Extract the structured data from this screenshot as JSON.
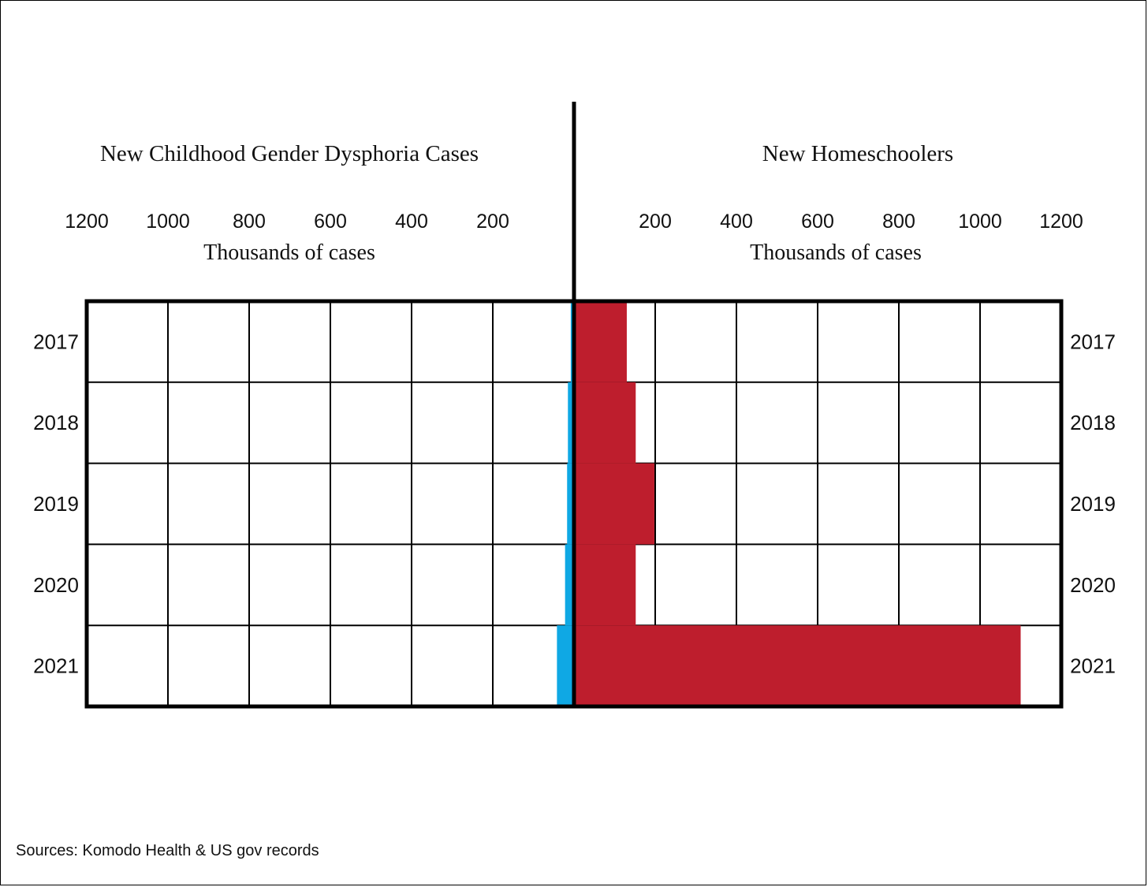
{
  "chart_data": {
    "type": "bar",
    "subtype": "back-to-back horizontal bar",
    "categories": [
      "2017",
      "2018",
      "2019",
      "2020",
      "2021"
    ],
    "unit_label": "Thousands of cases",
    "ticks": [
      200,
      400,
      600,
      800,
      1000,
      1200
    ],
    "xlim": [
      0,
      1200
    ],
    "series": [
      {
        "name": "New Childhood Gender Dysphoria Cases",
        "side": "left",
        "color": "#0fa8e4",
        "values": [
          8,
          15,
          17,
          22,
          42
        ]
      },
      {
        "name": "New Homeschoolers",
        "side": "right",
        "color": "#be1e2d",
        "values": [
          130,
          152,
          198,
          152,
          1100
        ]
      }
    ],
    "grid": true
  },
  "source_text": "Sources: Komodo Health & US gov records"
}
